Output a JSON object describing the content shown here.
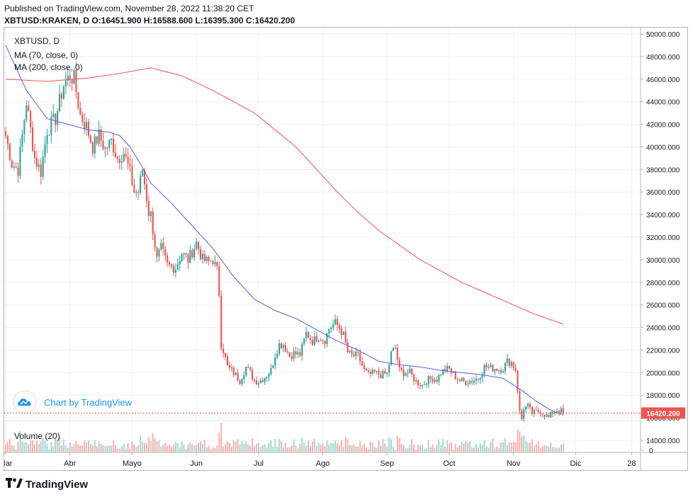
{
  "header": {
    "published": "Published on TradingView.com, November 28, 2022 11:38:20 CET",
    "ohlc": "XBTUSD:KRAKEN, D O:16451.900 H:16588.600 L:16395.300 C:16420.200"
  },
  "legend": {
    "symbol": "XBTUSD, D",
    "ma70": "MA (70, close, 0)",
    "ma200": "MA (200, close, 0)",
    "volume": "Volume (20)"
  },
  "watermark": "Chart by TradingView",
  "footer_brand": "TradingView",
  "colors": {
    "up": "#26a69a",
    "down": "#ef5350",
    "ma70": "#5b5bde",
    "ma200": "#ef5350",
    "price_tag_bg": "#ef5350",
    "volume_up": "#a8dbd2",
    "volume_down": "#f7b5b2"
  },
  "chart_data": {
    "type": "candlestick",
    "y_axis_ticks": [
      "50000.000",
      "48000.000",
      "46000.000",
      "44000.000",
      "42000.000",
      "40000.000",
      "38000.000",
      "36000.000",
      "34000.000",
      "32000.000",
      "30000.000",
      "28000.000",
      "26000.000",
      "24000.000",
      "22000.000",
      "20000.000",
      "18000.000",
      "16000.000",
      "14000.000"
    ],
    "y_tick_values": [
      50000,
      48000,
      46000,
      44000,
      42000,
      40000,
      38000,
      36000,
      34000,
      32000,
      30000,
      28000,
      26000,
      24000,
      22000,
      20000,
      18000,
      16000,
      14000
    ],
    "ylim": [
      13500,
      50500
    ],
    "x_axis_labels": [
      "Mar",
      "Abr",
      "Mayo",
      "Jun",
      "Jul",
      "Ago",
      "Sep",
      "Oct",
      "Nov",
      "Dic",
      "28"
    ],
    "x_label_days": [
      0,
      31,
      61,
      92,
      122,
      153,
      184,
      214,
      245,
      275,
      302
    ],
    "total_days": 307,
    "start_date": "2022-03-01",
    "last_price_label": "16420.200",
    "last_price": 16420.2,
    "volume_axis_label": "0",
    "close_anchors": [
      [
        0,
        41000
      ],
      [
        3,
        38500
      ],
      [
        6,
        38000
      ],
      [
        10,
        44000
      ],
      [
        14,
        39000
      ],
      [
        17,
        37800
      ],
      [
        20,
        41500
      ],
      [
        24,
        42500
      ],
      [
        28,
        45500
      ],
      [
        31,
        46300
      ],
      [
        33,
        46000
      ],
      [
        36,
        42800
      ],
      [
        39,
        41800
      ],
      [
        42,
        40000
      ],
      [
        45,
        41000
      ],
      [
        48,
        39800
      ],
      [
        51,
        40500
      ],
      [
        54,
        39000
      ],
      [
        57,
        39500
      ],
      [
        60,
        37700
      ],
      [
        62,
        36000
      ],
      [
        64,
        36000
      ],
      [
        66,
        38000
      ],
      [
        68,
        35500
      ],
      [
        69,
        34200
      ],
      [
        70,
        34000
      ],
      [
        73,
        30000
      ],
      [
        75,
        31000
      ],
      [
        78,
        29500
      ],
      [
        82,
        29300
      ],
      [
        85,
        30600
      ],
      [
        88,
        30000
      ],
      [
        92,
        31500
      ],
      [
        95,
        30000
      ],
      [
        98,
        29800
      ],
      [
        100,
        30000
      ],
      [
        102,
        29000
      ],
      [
        103,
        27000
      ],
      [
        104,
        22500
      ],
      [
        105,
        22000
      ],
      [
        107,
        20500
      ],
      [
        109,
        20200
      ],
      [
        113,
        19300
      ],
      [
        116,
        20500
      ],
      [
        118,
        20000
      ],
      [
        120,
        19300
      ],
      [
        122,
        19200
      ],
      [
        125,
        19600
      ],
      [
        128,
        20200
      ],
      [
        130,
        21600
      ],
      [
        132,
        22500
      ],
      [
        134,
        22500
      ],
      [
        137,
        21500
      ],
      [
        139,
        21700
      ],
      [
        142,
        21600
      ],
      [
        145,
        23500
      ],
      [
        148,
        22800
      ],
      [
        151,
        23200
      ],
      [
        154,
        22900
      ],
      [
        156,
        23900
      ],
      [
        159,
        24400
      ],
      [
        161,
        24000
      ],
      [
        163,
        23300
      ],
      [
        165,
        21800
      ],
      [
        167,
        21500
      ],
      [
        170,
        21500
      ],
      [
        173,
        20200
      ],
      [
        175,
        19800
      ],
      [
        178,
        20000
      ],
      [
        181,
        19800
      ],
      [
        184,
        19900
      ],
      [
        186,
        21700
      ],
      [
        188,
        22200
      ],
      [
        190,
        20200
      ],
      [
        192,
        20000
      ],
      [
        195,
        20000
      ],
      [
        198,
        19200
      ],
      [
        201,
        18900
      ],
      [
        203,
        19300
      ],
      [
        206,
        19500
      ],
      [
        208,
        19400
      ],
      [
        210,
        20000
      ],
      [
        212,
        20300
      ],
      [
        214,
        20300
      ],
      [
        216,
        19800
      ],
      [
        219,
        19300
      ],
      [
        222,
        19200
      ],
      [
        225,
        19300
      ],
      [
        228,
        19500
      ],
      [
        231,
        20500
      ],
      [
        234,
        20400
      ],
      [
        236,
        20400
      ],
      [
        238,
        20300
      ],
      [
        240,
        20400
      ],
      [
        242,
        21000
      ],
      [
        244,
        20900
      ],
      [
        246,
        20300
      ],
      [
        247,
        18500
      ],
      [
        248,
        16500
      ],
      [
        249,
        15900
      ],
      [
        250,
        16900
      ],
      [
        252,
        17000
      ],
      [
        254,
        16400
      ],
      [
        256,
        16500
      ],
      [
        258,
        16600
      ],
      [
        260,
        16300
      ],
      [
        262,
        16000
      ],
      [
        264,
        16500
      ],
      [
        266,
        16700
      ],
      [
        268,
        16600
      ],
      [
        269,
        16420
      ]
    ],
    "ma70_anchors": [
      [
        0,
        49000
      ],
      [
        10,
        45000
      ],
      [
        20,
        42500
      ],
      [
        30,
        42000
      ],
      [
        40,
        41500
      ],
      [
        50,
        41300
      ],
      [
        55,
        41000
      ],
      [
        60,
        40000
      ],
      [
        65,
        38500
      ],
      [
        70,
        36800
      ],
      [
        80,
        35000
      ],
      [
        90,
        33000
      ],
      [
        100,
        31000
      ],
      [
        110,
        28500
      ],
      [
        120,
        26500
      ],
      [
        130,
        25500
      ],
      [
        140,
        24800
      ],
      [
        150,
        23800
      ],
      [
        160,
        22800
      ],
      [
        170,
        22000
      ],
      [
        180,
        21000
      ],
      [
        190,
        20700
      ],
      [
        200,
        20500
      ],
      [
        210,
        20200
      ],
      [
        220,
        20000
      ],
      [
        230,
        19800
      ],
      [
        240,
        19500
      ],
      [
        250,
        18300
      ],
      [
        255,
        17600
      ],
      [
        260,
        17000
      ],
      [
        265,
        16500
      ],
      [
        269,
        16300
      ]
    ],
    "ma200_anchors": [
      [
        0,
        46000
      ],
      [
        20,
        45800
      ],
      [
        40,
        46100
      ],
      [
        55,
        46500
      ],
      [
        70,
        47000
      ],
      [
        85,
        46300
      ],
      [
        100,
        45000
      ],
      [
        120,
        43000
      ],
      [
        140,
        40000
      ],
      [
        160,
        36000
      ],
      [
        170,
        34200
      ],
      [
        180,
        32600
      ],
      [
        200,
        30000
      ],
      [
        220,
        28000
      ],
      [
        240,
        26400
      ],
      [
        255,
        25200
      ],
      [
        269,
        24300
      ]
    ]
  }
}
